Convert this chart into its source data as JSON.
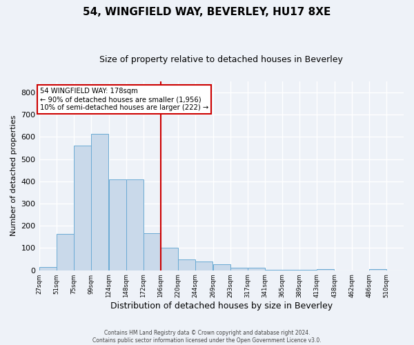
{
  "title": "54, WINGFIELD WAY, BEVERLEY, HU17 8XE",
  "subtitle": "Size of property relative to detached houses in Beverley",
  "xlabel": "Distribution of detached houses by size in Beverley",
  "ylabel": "Number of detached properties",
  "footer_line1": "Contains HM Land Registry data © Crown copyright and database right 2024.",
  "footer_line2": "Contains public sector information licensed under the Open Government Licence v3.0.",
  "bar_color": "#c9d9ea",
  "bar_edge_color": "#6aaad4",
  "annotation_line1": "54 WINGFIELD WAY: 178sqm",
  "annotation_line2": "← 90% of detached houses are smaller (1,956)",
  "annotation_line3": "10% of semi-detached houses are larger (222) →",
  "vline_x_index": 6,
  "vline_color": "#cc0000",
  "categories": [
    "27sqm",
    "51sqm",
    "75sqm",
    "99sqm",
    "124sqm",
    "148sqm",
    "172sqm",
    "196sqm",
    "220sqm",
    "244sqm",
    "269sqm",
    "293sqm",
    "317sqm",
    "341sqm",
    "365sqm",
    "389sqm",
    "413sqm",
    "438sqm",
    "462sqm",
    "486sqm",
    "510sqm"
  ],
  "bin_starts": [
    27,
    51,
    75,
    99,
    124,
    148,
    172,
    196,
    220,
    244,
    269,
    293,
    317,
    341,
    365,
    389,
    413,
    438,
    462,
    486,
    510
  ],
  "bin_width": 24,
  "values": [
    15,
    163,
    560,
    615,
    410,
    410,
    168,
    102,
    50,
    38,
    28,
    12,
    10,
    3,
    2,
    1,
    6,
    0,
    0,
    5,
    0
  ],
  "ylim": [
    0,
    850
  ],
  "yticks": [
    0,
    100,
    200,
    300,
    400,
    500,
    600,
    700,
    800
  ],
  "bg_color": "#eef2f8",
  "plot_bg_color": "#eef2f8",
  "grid_color": "#ffffff",
  "title_fontsize": 11,
  "subtitle_fontsize": 9,
  "ylabel_fontsize": 8,
  "xlabel_fontsize": 9
}
